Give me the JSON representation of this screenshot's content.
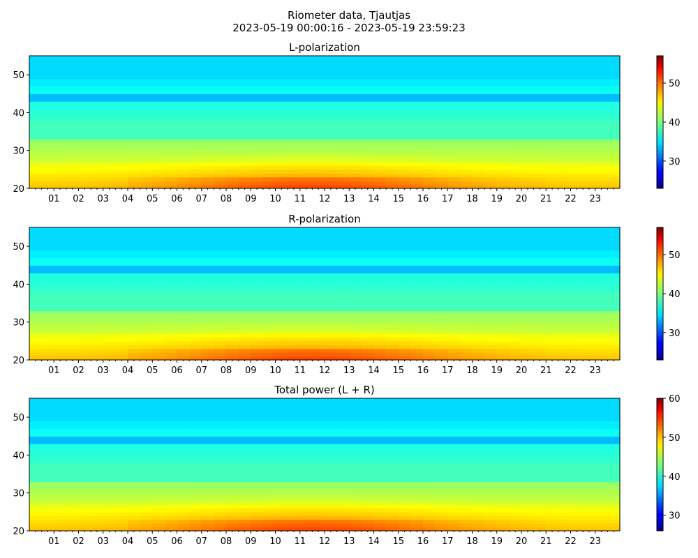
{
  "figure": {
    "title": "Riometer data, Tjautjas",
    "subtitle": "2023-05-19 00:00:16 - 2023-05-19 23:59:23"
  },
  "chart_data": [
    {
      "type": "heatmap",
      "title": "L-polarization",
      "xlabel": "",
      "ylabel": "",
      "x_ticks": [
        "01",
        "02",
        "03",
        "04",
        "05",
        "06",
        "07",
        "08",
        "09",
        "10",
        "11",
        "12",
        "13",
        "14",
        "15",
        "16",
        "17",
        "18",
        "19",
        "20",
        "21",
        "22",
        "23"
      ],
      "xlim": [
        0,
        24
      ],
      "y_ticks": [
        20,
        30,
        40,
        50
      ],
      "ylim": [
        20,
        55
      ],
      "colorscale": "jet",
      "colorbar": {
        "range": [
          23,
          57
        ],
        "ticks": [
          30,
          40,
          50
        ]
      },
      "value_range": [
        23,
        57
      ],
      "description_of_pattern": ""
    },
    {
      "type": "heatmap",
      "title": "R-polarization",
      "xlabel": "",
      "ylabel": "",
      "x_ticks": [
        "01",
        "02",
        "03",
        "04",
        "05",
        "06",
        "07",
        "08",
        "09",
        "10",
        "11",
        "12",
        "13",
        "14",
        "15",
        "16",
        "17",
        "18",
        "19",
        "20",
        "21",
        "22",
        "23"
      ],
      "xlim": [
        0,
        24
      ],
      "y_ticks": [
        20,
        30,
        40,
        50
      ],
      "ylim": [
        20,
        55
      ],
      "colorscale": "jet",
      "colorbar": {
        "range": [
          23,
          57
        ],
        "ticks": [
          30,
          40,
          50
        ]
      },
      "value_range": [
        23,
        57
      ]
    },
    {
      "type": "heatmap",
      "title": "Total power (L + R)",
      "xlabel": "",
      "ylabel": "",
      "x_ticks": [
        "01",
        "02",
        "03",
        "04",
        "05",
        "06",
        "07",
        "08",
        "09",
        "10",
        "11",
        "12",
        "13",
        "14",
        "15",
        "16",
        "17",
        "18",
        "19",
        "20",
        "21",
        "22",
        "23"
      ],
      "xlim": [
        0,
        24
      ],
      "y_ticks": [
        20,
        30,
        40,
        50
      ],
      "ylim": [
        20,
        55
      ],
      "colorscale": "jet",
      "colorbar": {
        "range": [
          26,
          60
        ],
        "ticks": [
          30,
          40,
          50,
          60
        ]
      },
      "value_range": [
        26,
        60
      ]
    }
  ]
}
